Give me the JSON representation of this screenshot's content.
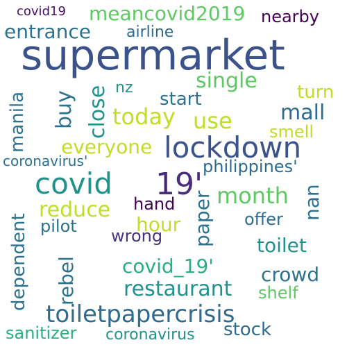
{
  "words": [
    {
      "text": "covid19",
      "color": "#471164"
    },
    {
      "text": "meancovid2019",
      "color": "#5ec962"
    },
    {
      "text": "nearby",
      "color": "#440154"
    },
    {
      "text": "entrance",
      "color": "#2c728e"
    },
    {
      "text": "airline",
      "color": "#2f6b8e"
    },
    {
      "text": "supermarket",
      "color": "#3b528b"
    },
    {
      "text": "single",
      "color": "#5ec962"
    },
    {
      "text": "nz",
      "color": "#21918c"
    },
    {
      "text": "start",
      "color": "#2c728e"
    },
    {
      "text": "turn",
      "color": "#bddf26"
    },
    {
      "text": "buy",
      "color": "#2c728e"
    },
    {
      "text": "close",
      "color": "#21918c"
    },
    {
      "text": "manila",
      "color": "#2c728e"
    },
    {
      "text": "today",
      "color": "#bddf26"
    },
    {
      "text": "use",
      "color": "#bddf26"
    },
    {
      "text": "mall",
      "color": "#2f6b8e"
    },
    {
      "text": "smell",
      "color": "#bddf26"
    },
    {
      "text": "everyone",
      "color": "#bddf26"
    },
    {
      "text": "lockdown",
      "color": "#3b528b"
    },
    {
      "text": "coronavirus'",
      "color": "#2c728e"
    },
    {
      "text": "philippines'",
      "color": "#2f6b8e"
    },
    {
      "text": "covid",
      "color": "#21918c"
    },
    {
      "text": "19'",
      "color": "#472d7b"
    },
    {
      "text": "dependent",
      "color": "#2c728e"
    },
    {
      "text": "reduce",
      "color": "#bddf26"
    },
    {
      "text": "hand",
      "color": "#440154"
    },
    {
      "text": "month",
      "color": "#5ec962"
    },
    {
      "text": "nan",
      "color": "#2c728e"
    },
    {
      "text": "paper",
      "color": "#2c728e"
    },
    {
      "text": "pilot",
      "color": "#2c728e"
    },
    {
      "text": "hour",
      "color": "#bddf26"
    },
    {
      "text": "offer",
      "color": "#2f6b8e"
    },
    {
      "text": "wrong",
      "color": "#46337e"
    },
    {
      "text": "rebel",
      "color": "#2c728e"
    },
    {
      "text": "toilet",
      "color": "#21918c"
    },
    {
      "text": "covid_19'",
      "color": "#28ae80"
    },
    {
      "text": "crowd",
      "color": "#2c728e"
    },
    {
      "text": "restaurant",
      "color": "#21918c"
    },
    {
      "text": "shelf",
      "color": "#5ec962"
    },
    {
      "text": "toiletpapercrisis",
      "color": "#2f6b8e"
    },
    {
      "text": "sanitizer",
      "color": "#28ae80"
    },
    {
      "text": "coronavirus",
      "color": "#21918c"
    },
    {
      "text": "stock",
      "color": "#2f6b8e"
    }
  ]
}
